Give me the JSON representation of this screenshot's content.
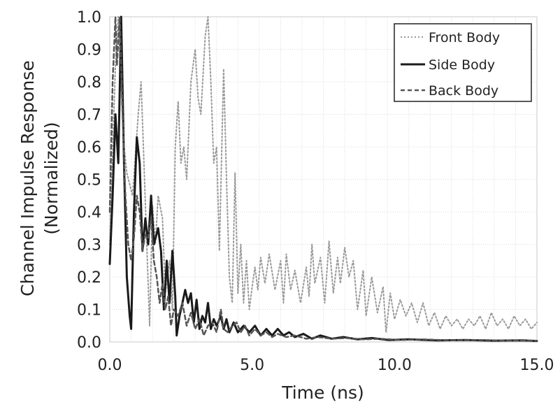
{
  "chart_data": {
    "type": "line",
    "xlabel": "Time (ns)",
    "ylabel_lines": [
      "Channel Impulse Response",
      "(Normalized)"
    ],
    "xlim": [
      0,
      15
    ],
    "ylim": [
      0,
      1
    ],
    "x_ticks": [
      "0.0",
      "5.0",
      "10.0",
      "15.0"
    ],
    "y_ticks": [
      "0.0",
      "0.1",
      "0.2",
      "0.3",
      "0.4",
      "0.5",
      "0.6",
      "0.7",
      "0.8",
      "0.9",
      "1.0"
    ],
    "grid": true,
    "legend_position": "top-right",
    "series": [
      {
        "name": "Front Body",
        "style": "dotted",
        "color": "#9a9a9a",
        "points": [
          [
            0.0,
            0.3
          ],
          [
            0.2,
            0.85
          ],
          [
            0.3,
            1.0
          ],
          [
            0.5,
            0.6
          ],
          [
            0.6,
            0.52
          ],
          [
            0.8,
            0.45
          ],
          [
            1.0,
            0.7
          ],
          [
            1.1,
            0.8
          ],
          [
            1.2,
            0.55
          ],
          [
            1.4,
            0.05
          ],
          [
            1.5,
            0.42
          ],
          [
            1.6,
            0.3
          ],
          [
            1.7,
            0.45
          ],
          [
            1.85,
            0.38
          ],
          [
            1.95,
            0.15
          ],
          [
            2.1,
            0.25
          ],
          [
            2.2,
            0.1
          ],
          [
            2.3,
            0.6
          ],
          [
            2.4,
            0.74
          ],
          [
            2.5,
            0.55
          ],
          [
            2.6,
            0.6
          ],
          [
            2.7,
            0.5
          ],
          [
            2.85,
            0.8
          ],
          [
            3.0,
            0.9
          ],
          [
            3.1,
            0.75
          ],
          [
            3.2,
            0.7
          ],
          [
            3.35,
            0.94
          ],
          [
            3.45,
            1.0
          ],
          [
            3.55,
            0.8
          ],
          [
            3.65,
            0.55
          ],
          [
            3.75,
            0.6
          ],
          [
            3.85,
            0.28
          ],
          [
            4.0,
            0.84
          ],
          [
            4.1,
            0.5
          ],
          [
            4.2,
            0.2
          ],
          [
            4.3,
            0.12
          ],
          [
            4.4,
            0.52
          ],
          [
            4.5,
            0.15
          ],
          [
            4.6,
            0.3
          ],
          [
            4.7,
            0.12
          ],
          [
            4.8,
            0.25
          ],
          [
            4.9,
            0.1
          ],
          [
            5.0,
            0.17
          ],
          [
            5.1,
            0.23
          ],
          [
            5.2,
            0.16
          ],
          [
            5.3,
            0.26
          ],
          [
            5.45,
            0.18
          ],
          [
            5.6,
            0.27
          ],
          [
            5.8,
            0.16
          ],
          [
            6.0,
            0.25
          ],
          [
            6.1,
            0.12
          ],
          [
            6.2,
            0.27
          ],
          [
            6.35,
            0.16
          ],
          [
            6.5,
            0.22
          ],
          [
            6.7,
            0.12
          ],
          [
            6.9,
            0.23
          ],
          [
            7.0,
            0.14
          ],
          [
            7.1,
            0.3
          ],
          [
            7.2,
            0.18
          ],
          [
            7.4,
            0.26
          ],
          [
            7.55,
            0.12
          ],
          [
            7.7,
            0.31
          ],
          [
            7.85,
            0.15
          ],
          [
            8.0,
            0.26
          ],
          [
            8.1,
            0.18
          ],
          [
            8.25,
            0.29
          ],
          [
            8.4,
            0.2
          ],
          [
            8.55,
            0.25
          ],
          [
            8.7,
            0.1
          ],
          [
            8.9,
            0.22
          ],
          [
            9.0,
            0.08
          ],
          [
            9.2,
            0.2
          ],
          [
            9.4,
            0.09
          ],
          [
            9.6,
            0.17
          ],
          [
            9.7,
            0.03
          ],
          [
            9.85,
            0.15
          ],
          [
            10.0,
            0.07
          ],
          [
            10.2,
            0.13
          ],
          [
            10.4,
            0.08
          ],
          [
            10.6,
            0.12
          ],
          [
            10.8,
            0.06
          ],
          [
            11.0,
            0.12
          ],
          [
            11.2,
            0.05
          ],
          [
            11.4,
            0.09
          ],
          [
            11.6,
            0.04
          ],
          [
            11.8,
            0.08
          ],
          [
            12.0,
            0.05
          ],
          [
            12.2,
            0.07
          ],
          [
            12.4,
            0.04
          ],
          [
            12.6,
            0.07
          ],
          [
            12.8,
            0.05
          ],
          [
            13.0,
            0.08
          ],
          [
            13.2,
            0.04
          ],
          [
            13.4,
            0.09
          ],
          [
            13.6,
            0.05
          ],
          [
            13.8,
            0.07
          ],
          [
            14.0,
            0.04
          ],
          [
            14.2,
            0.08
          ],
          [
            14.4,
            0.05
          ],
          [
            14.6,
            0.07
          ],
          [
            14.8,
            0.04
          ],
          [
            15.0,
            0.06
          ]
        ]
      },
      {
        "name": "Side Body",
        "style": "solid",
        "color": "#1a1a1a",
        "points": [
          [
            0.0,
            0.24
          ],
          [
            0.1,
            0.45
          ],
          [
            0.2,
            0.7
          ],
          [
            0.3,
            0.55
          ],
          [
            0.4,
            1.0
          ],
          [
            0.5,
            0.55
          ],
          [
            0.6,
            0.2
          ],
          [
            0.7,
            0.08
          ],
          [
            0.75,
            0.04
          ],
          [
            0.85,
            0.4
          ],
          [
            0.95,
            0.63
          ],
          [
            1.05,
            0.55
          ],
          [
            1.15,
            0.28
          ],
          [
            1.25,
            0.38
          ],
          [
            1.35,
            0.3
          ],
          [
            1.45,
            0.45
          ],
          [
            1.55,
            0.3
          ],
          [
            1.7,
            0.35
          ],
          [
            1.8,
            0.28
          ],
          [
            1.9,
            0.1
          ],
          [
            2.0,
            0.25
          ],
          [
            2.1,
            0.12
          ],
          [
            2.2,
            0.28
          ],
          [
            2.3,
            0.14
          ],
          [
            2.35,
            0.02
          ],
          [
            2.45,
            0.08
          ],
          [
            2.55,
            0.12
          ],
          [
            2.65,
            0.16
          ],
          [
            2.75,
            0.12
          ],
          [
            2.85,
            0.15
          ],
          [
            2.95,
            0.06
          ],
          [
            3.05,
            0.13
          ],
          [
            3.15,
            0.04
          ],
          [
            3.25,
            0.08
          ],
          [
            3.35,
            0.06
          ],
          [
            3.45,
            0.12
          ],
          [
            3.55,
            0.04
          ],
          [
            3.65,
            0.07
          ],
          [
            3.75,
            0.05
          ],
          [
            3.9,
            0.08
          ],
          [
            4.0,
            0.04
          ],
          [
            4.1,
            0.07
          ],
          [
            4.2,
            0.03
          ],
          [
            4.35,
            0.06
          ],
          [
            4.5,
            0.03
          ],
          [
            4.7,
            0.05
          ],
          [
            4.9,
            0.03
          ],
          [
            5.1,
            0.05
          ],
          [
            5.3,
            0.02
          ],
          [
            5.5,
            0.04
          ],
          [
            5.7,
            0.02
          ],
          [
            5.9,
            0.04
          ],
          [
            6.1,
            0.02
          ],
          [
            6.3,
            0.03
          ],
          [
            6.5,
            0.015
          ],
          [
            6.8,
            0.025
          ],
          [
            7.1,
            0.01
          ],
          [
            7.4,
            0.02
          ],
          [
            7.8,
            0.01
          ],
          [
            8.2,
            0.015
          ],
          [
            8.7,
            0.008
          ],
          [
            9.2,
            0.012
          ],
          [
            9.8,
            0.006
          ],
          [
            10.5,
            0.008
          ],
          [
            11.5,
            0.005
          ],
          [
            12.5,
            0.006
          ],
          [
            13.5,
            0.004
          ],
          [
            14.5,
            0.005
          ],
          [
            15.0,
            0.003
          ]
        ]
      },
      {
        "name": "Back Body",
        "style": "dashed",
        "color": "#555555",
        "points": [
          [
            0.0,
            0.4
          ],
          [
            0.1,
            0.8
          ],
          [
            0.2,
            1.0
          ],
          [
            0.25,
            0.85
          ],
          [
            0.35,
            1.0
          ],
          [
            0.45,
            0.7
          ],
          [
            0.55,
            0.45
          ],
          [
            0.65,
            0.3
          ],
          [
            0.75,
            0.25
          ],
          [
            0.85,
            0.32
          ],
          [
            0.95,
            0.45
          ],
          [
            1.05,
            0.4
          ],
          [
            1.15,
            0.28
          ],
          [
            1.25,
            0.33
          ],
          [
            1.35,
            0.32
          ],
          [
            1.45,
            0.38
          ],
          [
            1.55,
            0.25
          ],
          [
            1.65,
            0.2
          ],
          [
            1.75,
            0.12
          ],
          [
            1.85,
            0.18
          ],
          [
            1.95,
            0.1
          ],
          [
            2.05,
            0.14
          ],
          [
            2.15,
            0.05
          ],
          [
            2.25,
            0.1
          ],
          [
            2.4,
            0.08
          ],
          [
            2.55,
            0.12
          ],
          [
            2.7,
            0.05
          ],
          [
            2.85,
            0.09
          ],
          [
            3.0,
            0.04
          ],
          [
            3.15,
            0.07
          ],
          [
            3.3,
            0.02
          ],
          [
            3.45,
            0.05
          ],
          [
            3.6,
            0.06
          ],
          [
            3.75,
            0.03
          ],
          [
            3.9,
            0.1
          ],
          [
            4.0,
            0.04
          ],
          [
            4.15,
            0.03
          ],
          [
            4.3,
            0.05
          ],
          [
            4.45,
            0.06
          ],
          [
            4.6,
            0.03
          ],
          [
            4.75,
            0.05
          ],
          [
            4.9,
            0.02
          ],
          [
            5.1,
            0.04
          ],
          [
            5.3,
            0.02
          ],
          [
            5.5,
            0.03
          ],
          [
            5.7,
            0.015
          ],
          [
            5.9,
            0.025
          ],
          [
            6.2,
            0.015
          ],
          [
            6.5,
            0.02
          ],
          [
            6.9,
            0.01
          ],
          [
            7.3,
            0.015
          ],
          [
            7.8,
            0.01
          ],
          [
            8.3,
            0.012
          ],
          [
            8.9,
            0.008
          ],
          [
            9.5,
            0.01
          ],
          [
            10.2,
            0.006
          ],
          [
            11.0,
            0.008
          ],
          [
            12.0,
            0.005
          ],
          [
            13.0,
            0.006
          ],
          [
            14.0,
            0.004
          ],
          [
            15.0,
            0.004
          ]
        ]
      }
    ]
  }
}
